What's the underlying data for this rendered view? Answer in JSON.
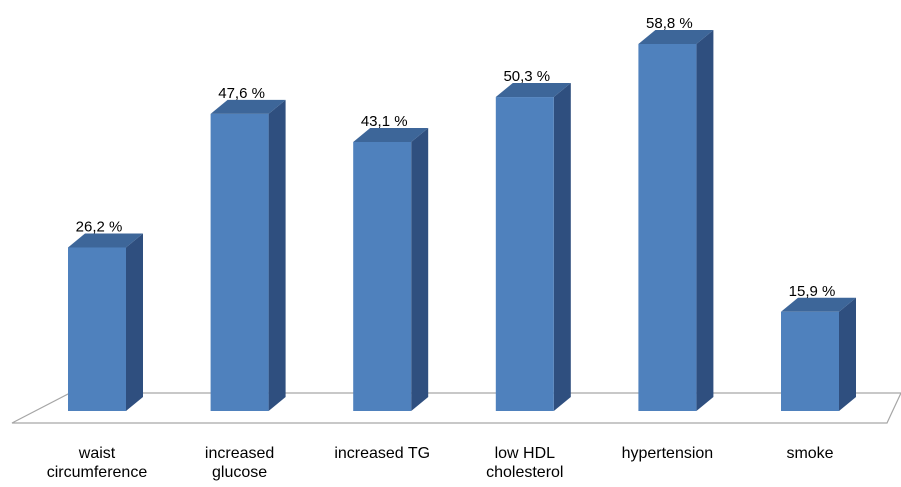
{
  "chart_data": {
    "type": "bar",
    "style": "3d-column",
    "categories": [
      [
        "waist",
        "circumference"
      ],
      [
        "increased",
        "glucose"
      ],
      [
        "increased TG"
      ],
      [
        "low HDL",
        "cholesterol"
      ],
      [
        "hypertension"
      ],
      [
        "smoke"
      ]
    ],
    "values": [
      26.2,
      47.6,
      43.1,
      50.3,
      58.8,
      15.9
    ],
    "data_labels": [
      "26,2 %",
      "47,6 %",
      "43,1 %",
      "50,3 %",
      "58,8 %",
      "15,9 %"
    ],
    "ylim": [
      0,
      58.8
    ],
    "grid": false,
    "legend": "none",
    "colors": {
      "bar_front": "#4f81bd",
      "bar_side": "#2f4f7f",
      "bar_top": "#3d6699",
      "floor_stroke": "#a6a6a6",
      "text": "#000000"
    }
  }
}
